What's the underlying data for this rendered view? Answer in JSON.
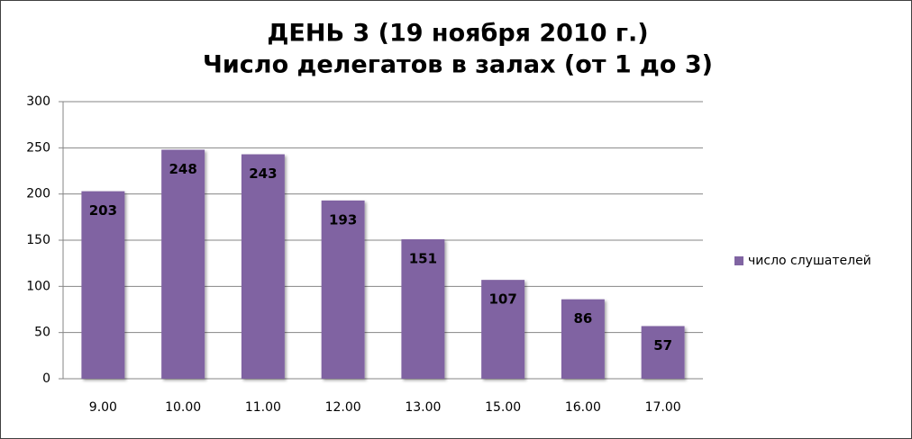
{
  "chart_data": {
    "type": "bar",
    "title": "ДЕНЬ 3 (19 ноября 2010 г.)",
    "subtitle": "Число делегатов в залах (от 1 до 3)",
    "categories": [
      "9.00",
      "10.00",
      "11.00",
      "12.00",
      "13.00",
      "15.00",
      "16.00",
      "17.00"
    ],
    "series": [
      {
        "name": "число слушателей",
        "color": "#8064a2",
        "values": [
          203,
          248,
          243,
          193,
          151,
          107,
          86,
          57
        ]
      }
    ],
    "ylim": [
      0,
      300
    ],
    "yticks": [
      0,
      50,
      100,
      150,
      200,
      250,
      300
    ],
    "grid": true,
    "legend": "right"
  }
}
